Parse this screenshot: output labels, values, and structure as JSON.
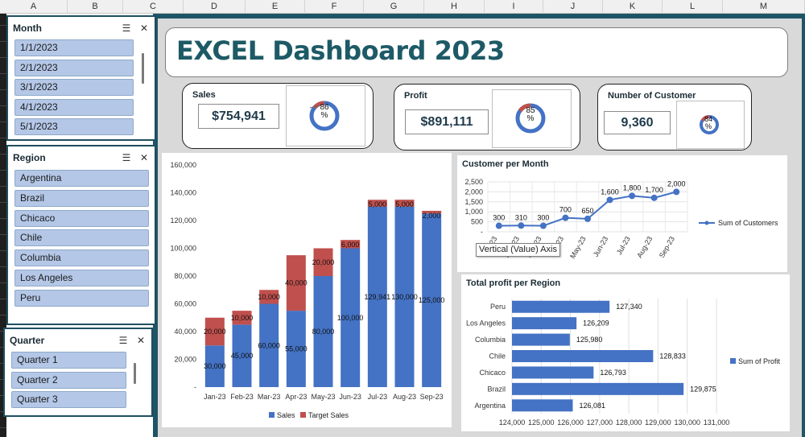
{
  "columns": [
    "A",
    "B",
    "C",
    "D",
    "E",
    "F",
    "G",
    "H",
    "I",
    "J",
    "K",
    "L",
    "M"
  ],
  "slicers": {
    "month": {
      "title": "Month",
      "items": [
        "1/1/2023",
        "2/1/2023",
        "3/1/2023",
        "4/1/2023",
        "5/1/2023"
      ]
    },
    "region": {
      "title": "Region",
      "items": [
        "Argentina",
        "Brazil",
        "Chicaco",
        "Chile",
        "Columbia",
        "Los Angeles",
        "Peru"
      ]
    },
    "quarter": {
      "title": "Quarter",
      "items": [
        "Quarter 1",
        "Quarter 2",
        "Quarter 3"
      ]
    }
  },
  "title": "EXCEL Dashboard 2023",
  "kpis": {
    "sales": {
      "label": "Sales",
      "value": "$754,941",
      "pct": "86",
      "pct_sign": "%",
      "fraction": 0.86
    },
    "profit": {
      "label": "Profit",
      "value": "$891,111",
      "pct": "85",
      "pct_sign": "%",
      "fraction": 0.85
    },
    "customers": {
      "label": "Number of Customer",
      "value": "9,360",
      "pct": "84",
      "pct_sign": "%",
      "fraction": 0.84
    }
  },
  "tooltip": "Vertical (Value) Axis",
  "colors": {
    "blue": "#4472c4",
    "red": "#c0504d",
    "teal": "#1e5566",
    "title": "#1d5a66",
    "slicer_item": "#b4c7e7"
  },
  "chart_data": [
    {
      "type": "bar",
      "stacked": true,
      "categories": [
        "Jan-23",
        "Feb-23",
        "Mar-23",
        "Apr-23",
        "May-23",
        "Jun-23",
        "Jul-23",
        "Aug-23",
        "Sep-23"
      ],
      "series": [
        {
          "name": "Sales",
          "values": [
            30000,
            45000,
            60000,
            55000,
            80000,
            100000,
            129941,
            130000,
            125000
          ],
          "labels": [
            "30,000",
            "45,000",
            "60,000",
            "55,000",
            "80,000",
            "100,000",
            "129,941",
            "130,000",
            "125,000"
          ]
        },
        {
          "name": "Target Sales",
          "values": [
            20000,
            10000,
            10000,
            40000,
            20000,
            6000,
            5000,
            5000,
            2000
          ],
          "labels": [
            "20,000",
            "10,000",
            "10,000",
            "40,000",
            "20,000",
            "6,000",
            "5,000",
            "5,000",
            "2,000"
          ]
        }
      ],
      "ylim": [
        0,
        160000
      ],
      "yticks": [
        "-",
        "20,000",
        "40,000",
        "60,000",
        "80,000",
        "100,000",
        "120,000",
        "140,000",
        "160,000"
      ],
      "legend": "bottom"
    },
    {
      "type": "line",
      "title": "Customer per Month",
      "categories": [
        "Jan-23",
        "Feb-23",
        "Mar-23",
        "Apr-23",
        "May-23",
        "Jun-23",
        "Jul-23",
        "Aug-23",
        "Sep-23"
      ],
      "series": [
        {
          "name": "Sum of Customers",
          "values": [
            300,
            310,
            300,
            700,
            650,
            1600,
            1800,
            1700,
            2000
          ],
          "labels": [
            "300",
            "310",
            "300",
            "700",
            "650",
            "1,600",
            "1,800",
            "1,700",
            "2,000"
          ]
        }
      ],
      "ylim": [
        0,
        2500
      ],
      "yticks": [
        "-",
        "500",
        "1,000",
        "1,500",
        "2,000",
        "2,500"
      ],
      "legend": "right"
    },
    {
      "type": "bar",
      "orientation": "horizontal",
      "title": "Total profit per Region",
      "categories": [
        "Peru",
        "Los Angeles",
        "Columbia",
        "Chile",
        "Chicaco",
        "Brazil",
        "Argentina"
      ],
      "series": [
        {
          "name": "Sum of Profit",
          "values": [
            127340,
            126209,
            125980,
            128833,
            126793,
            129875,
            126081
          ],
          "labels": [
            "127,340",
            "126,209",
            "125,980",
            "128,833",
            "126,793",
            "129,875",
            "126,081"
          ]
        }
      ],
      "xlim": [
        124000,
        131000
      ],
      "xticks": [
        "124,000",
        "125,000",
        "126,000",
        "127,000",
        "128,000",
        "129,000",
        "130,000",
        "131,000"
      ],
      "legend": "right"
    }
  ]
}
